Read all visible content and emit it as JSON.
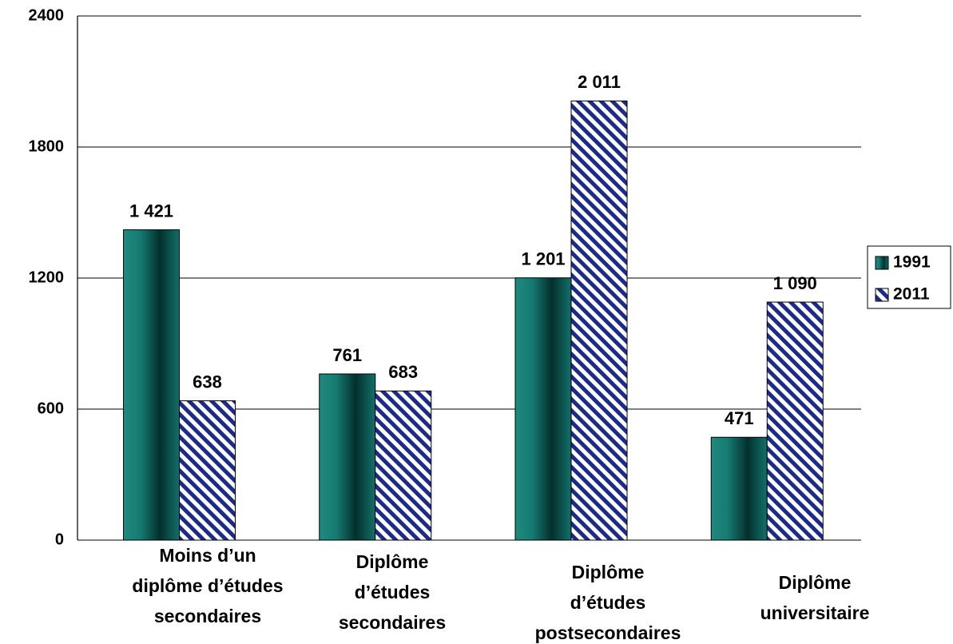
{
  "chart_data": {
    "type": "bar",
    "categories": [
      [
        "Moins d’un",
        "diplôme d’études",
        "secondaires"
      ],
      [
        "Diplôme",
        "d’études",
        "secondaires"
      ],
      [
        "Diplôme",
        "d’études",
        "postsecondaires"
      ],
      [
        "Diplôme",
        "universitaire"
      ]
    ],
    "series": [
      {
        "name": "1991",
        "color": "#1a7a72",
        "fill_style": "gradient",
        "values": [
          1421,
          761,
          1201,
          471
        ],
        "value_labels": [
          "1 421",
          "761",
          "1 201",
          "471"
        ]
      },
      {
        "name": "2011",
        "color": "#1c2a8a",
        "fill_style": "hatch",
        "values": [
          638,
          683,
          2011,
          1090
        ],
        "value_labels": [
          "638",
          "683",
          "2 011",
          "1 090"
        ]
      }
    ],
    "ylim": [
      0,
      2400
    ],
    "yticks": [
      0,
      600,
      1200,
      1800,
      2400
    ],
    "grid": true,
    "legend": "right"
  }
}
